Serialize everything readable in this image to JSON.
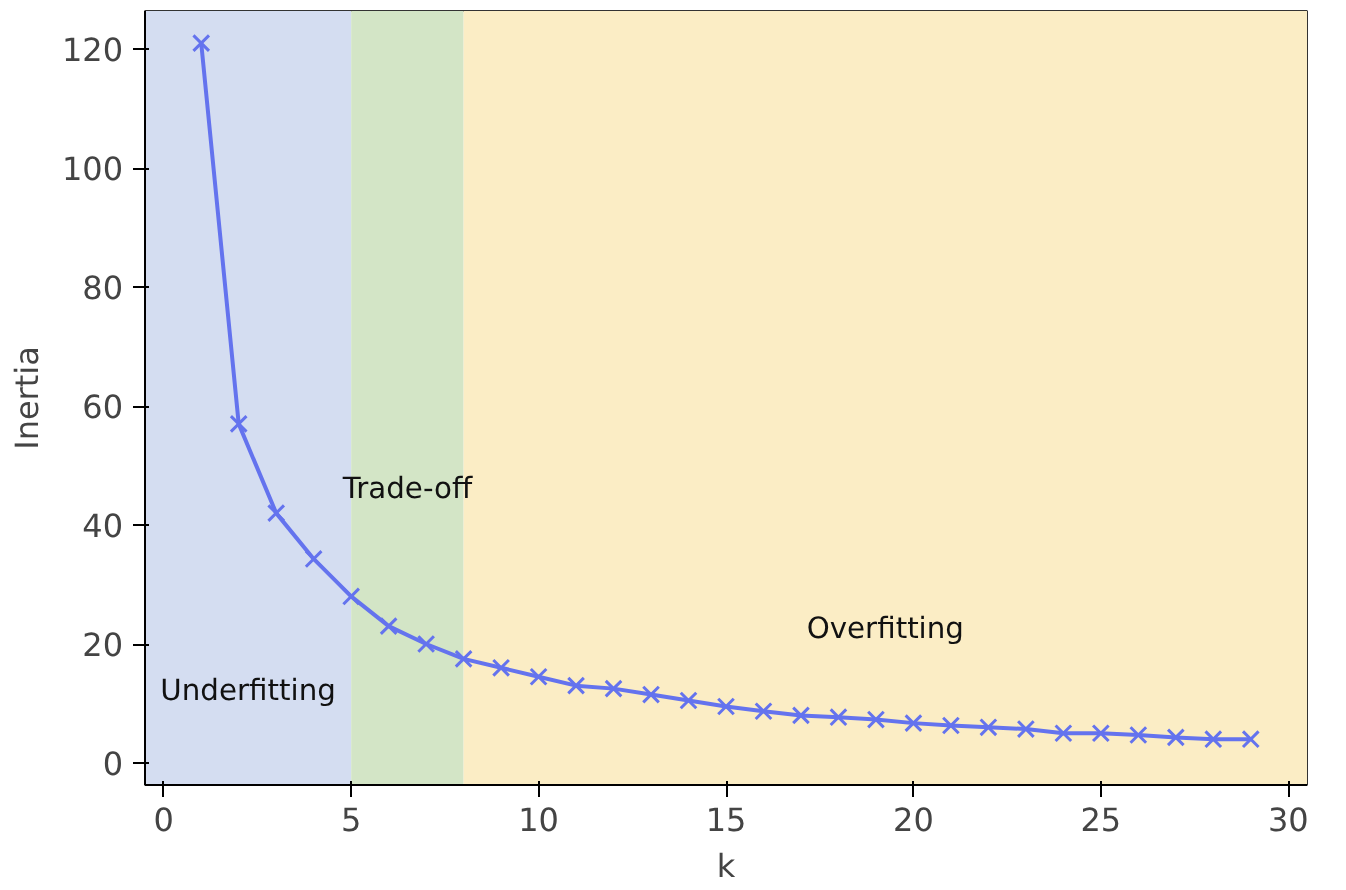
{
  "chart_data": {
    "type": "line",
    "xlabel": "k",
    "ylabel": "Inertia",
    "x": [
      1,
      2,
      3,
      4,
      5,
      6,
      7,
      8,
      9,
      10,
      11,
      12,
      13,
      14,
      15,
      16,
      17,
      18,
      19,
      20,
      21,
      22,
      23,
      24,
      25,
      26,
      27,
      28,
      29
    ],
    "series": [
      {
        "color": "#6473ee",
        "values": [
          121,
          57,
          42,
          34.3,
          28,
          23,
          20,
          17.5,
          16,
          14.5,
          13,
          12.5,
          11.5,
          10.5,
          9.5,
          8.7,
          8,
          7.7,
          7.3,
          6.7,
          6.3,
          6,
          5.7,
          5,
          5,
          4.7,
          4.3,
          4,
          4
        ]
      }
    ],
    "xlim": [
      -0.5,
      30.5
    ],
    "ylim": [
      -3.7,
      126.4
    ],
    "xticks": [
      0,
      5,
      10,
      15,
      20,
      25,
      30
    ],
    "yticks": [
      0,
      20,
      40,
      60,
      80,
      100,
      120
    ],
    "bands": [
      {
        "axis": "x",
        "from": -0.5,
        "to": 5,
        "label": "Underfitting",
        "color": "#d4ddf1"
      },
      {
        "axis": "x",
        "from": 5,
        "to": 8,
        "label": "Trade-off",
        "color": "#d3e5c6"
      },
      {
        "axis": "x",
        "from": 8,
        "to": 30.5,
        "label": "Overfitting",
        "color": "#fbedc5"
      }
    ],
    "marker": "cross",
    "line_style": "solid",
    "grid": false
  }
}
